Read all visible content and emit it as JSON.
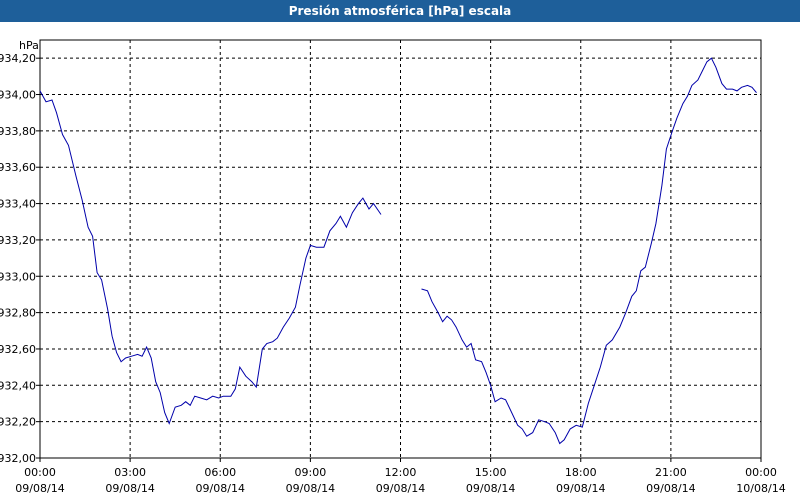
{
  "window": {
    "title": "Presión atmosférica [hPa] escala"
  },
  "chart_data": {
    "type": "line",
    "title": "Presión atmosférica [hPa] escala",
    "ylabel": "hPa",
    "xlabel": "",
    "ylim": [
      932.0,
      934.3
    ],
    "xlim_hours": [
      0,
      24
    ],
    "grid": true,
    "y_ticks": [
      "932,00",
      "932,20",
      "932,40",
      "932,60",
      "932,80",
      "933,00",
      "933,20",
      "933,40",
      "933,60",
      "933,80",
      "934,00",
      "934,20"
    ],
    "y_tick_values": [
      932.0,
      932.2,
      932.4,
      932.6,
      932.8,
      933.0,
      933.2,
      933.4,
      933.6,
      933.8,
      934.0,
      934.2
    ],
    "x_ticks": [
      {
        "time": "00:00",
        "date": "09/08/14"
      },
      {
        "time": "03:00",
        "date": "09/08/14"
      },
      {
        "time": "06:00",
        "date": "09/08/14"
      },
      {
        "time": "09:00",
        "date": "09/08/14"
      },
      {
        "time": "12:00",
        "date": "09/08/14"
      },
      {
        "time": "15:00",
        "date": "09/08/14"
      },
      {
        "time": "18:00",
        "date": "09/08/14"
      },
      {
        "time": "21:00",
        "date": "09/08/14"
      },
      {
        "time": "00:00",
        "date": "10/08/14"
      }
    ],
    "series": [
      {
        "color": "#0000aa",
        "segments": [
          [
            [
              0,
              934.02
            ],
            [
              0.2,
              933.96
            ],
            [
              0.4,
              933.97
            ],
            [
              0.55,
              933.9
            ],
            [
              0.75,
              933.78
            ],
            [
              0.95,
              933.72
            ],
            [
              1.2,
              933.55
            ],
            [
              1.4,
              933.42
            ],
            [
              1.6,
              933.27
            ],
            [
              1.75,
              933.22
            ],
            [
              1.9,
              933.02
            ],
            [
              2.05,
              932.98
            ],
            [
              2.25,
              932.82
            ],
            [
              2.4,
              932.67
            ],
            [
              2.55,
              932.58
            ],
            [
              2.7,
              932.53
            ],
            [
              2.85,
              932.55
            ],
            [
              3.05,
              932.56
            ],
            [
              3.25,
              932.57
            ],
            [
              3.4,
              932.56
            ],
            [
              3.55,
              932.61
            ],
            [
              3.7,
              932.55
            ],
            [
              3.85,
              932.42
            ],
            [
              4.0,
              932.36
            ],
            [
              4.15,
              932.25
            ],
            [
              4.3,
              932.19
            ],
            [
              4.5,
              932.28
            ],
            [
              4.7,
              932.29
            ],
            [
              4.85,
              932.31
            ],
            [
              5.0,
              932.29
            ],
            [
              5.15,
              932.34
            ],
            [
              5.35,
              932.33
            ],
            [
              5.55,
              932.32
            ],
            [
              5.75,
              932.34
            ],
            [
              5.95,
              932.33
            ],
            [
              6.1,
              932.34
            ],
            [
              6.35,
              932.34
            ],
            [
              6.5,
              932.38
            ],
            [
              6.65,
              932.5
            ],
            [
              6.85,
              932.45
            ],
            [
              7.05,
              932.42
            ],
            [
              7.2,
              932.39
            ],
            [
              7.4,
              932.6
            ],
            [
              7.55,
              932.63
            ],
            [
              7.75,
              932.64
            ],
            [
              7.9,
              932.66
            ],
            [
              8.1,
              932.72
            ],
            [
              8.3,
              932.77
            ],
            [
              8.5,
              932.83
            ],
            [
              8.65,
              932.95
            ],
            [
              8.85,
              933.1
            ],
            [
              9.0,
              933.17
            ],
            [
              9.2,
              933.16
            ],
            [
              9.45,
              933.16
            ],
            [
              9.65,
              933.25
            ],
            [
              9.85,
              933.29
            ],
            [
              10.0,
              933.33
            ],
            [
              10.2,
              933.27
            ],
            [
              10.4,
              933.35
            ],
            [
              10.6,
              933.4
            ],
            [
              10.75,
              933.43
            ],
            [
              10.95,
              933.37
            ],
            [
              11.1,
              933.4
            ],
            [
              11.35,
              933.34
            ]
          ],
          [
            [
              12.7,
              932.93
            ],
            [
              12.9,
              932.92
            ],
            [
              13.05,
              932.86
            ],
            [
              13.25,
              932.8
            ],
            [
              13.4,
              932.75
            ],
            [
              13.55,
              932.78
            ],
            [
              13.7,
              932.76
            ],
            [
              13.85,
              932.72
            ],
            [
              14.05,
              932.65
            ],
            [
              14.2,
              932.61
            ],
            [
              14.35,
              932.63
            ],
            [
              14.5,
              932.54
            ],
            [
              14.7,
              932.53
            ],
            [
              14.85,
              932.47
            ],
            [
              15.0,
              932.4
            ],
            [
              15.15,
              932.31
            ],
            [
              15.35,
              932.33
            ],
            [
              15.5,
              932.32
            ],
            [
              15.7,
              932.25
            ],
            [
              15.9,
              932.18
            ],
            [
              16.05,
              932.16
            ],
            [
              16.2,
              932.12
            ],
            [
              16.4,
              932.14
            ],
            [
              16.6,
              932.21
            ],
            [
              16.8,
              932.2
            ],
            [
              16.95,
              932.19
            ],
            [
              17.15,
              932.14
            ],
            [
              17.3,
              932.08
            ],
            [
              17.45,
              932.1
            ],
            [
              17.65,
              932.16
            ],
            [
              17.85,
              932.18
            ],
            [
              18.05,
              932.17
            ],
            [
              18.25,
              932.3
            ],
            [
              18.45,
              932.4
            ],
            [
              18.65,
              932.5
            ],
            [
              18.85,
              932.62
            ],
            [
              19.05,
              932.65
            ],
            [
              19.3,
              932.72
            ],
            [
              19.5,
              932.8
            ],
            [
              19.7,
              932.89
            ],
            [
              19.85,
              932.92
            ],
            [
              20.0,
              933.03
            ],
            [
              20.15,
              933.05
            ],
            [
              20.35,
              933.18
            ],
            [
              20.5,
              933.29
            ],
            [
              20.7,
              933.5
            ],
            [
              20.85,
              933.7
            ],
            [
              21.05,
              933.8
            ],
            [
              21.2,
              933.87
            ],
            [
              21.4,
              933.95
            ],
            [
              21.55,
              933.99
            ],
            [
              21.7,
              934.05
            ],
            [
              21.9,
              934.08
            ],
            [
              22.05,
              934.13
            ],
            [
              22.2,
              934.18
            ],
            [
              22.35,
              934.2
            ],
            [
              22.5,
              934.15
            ],
            [
              22.7,
              934.06
            ],
            [
              22.85,
              934.03
            ],
            [
              23.05,
              934.03
            ],
            [
              23.2,
              934.02
            ],
            [
              23.35,
              934.04
            ],
            [
              23.55,
              934.05
            ],
            [
              23.7,
              934.04
            ],
            [
              23.85,
              934.01
            ]
          ]
        ]
      }
    ]
  }
}
